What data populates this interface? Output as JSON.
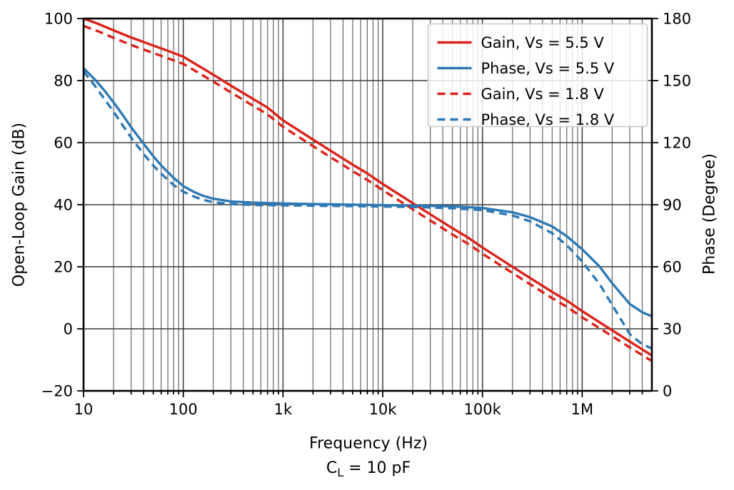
{
  "page": {
    "background": "#ffffff"
  },
  "subtitle": {
    "prefix": "C",
    "sub": "L",
    "rest": " = 10 pF"
  },
  "chart_data": {
    "type": "line",
    "title": "",
    "condition": "CL = 10 pF",
    "x_axis": {
      "label": "Frequency (Hz)",
      "scale": "log",
      "min": 10,
      "max": 5000000,
      "major_ticks": [
        {
          "value": 10,
          "label": "10"
        },
        {
          "value": 100,
          "label": "100"
        },
        {
          "value": 1000,
          "label": "1k"
        },
        {
          "value": 10000,
          "label": "10k"
        },
        {
          "value": 100000,
          "label": "100k"
        },
        {
          "value": 1000000,
          "label": "1M"
        }
      ]
    },
    "y_left": {
      "label": "Open-Loop Gain (dB)",
      "min": -20,
      "max": 100,
      "ticks": [
        {
          "value": 100,
          "label": "100"
        },
        {
          "value": 80,
          "label": "80"
        },
        {
          "value": 60,
          "label": "60"
        },
        {
          "value": 40,
          "label": "40"
        },
        {
          "value": 20,
          "label": "20"
        },
        {
          "value": 0,
          "label": "0"
        },
        {
          "value": -20,
          "label": "−20"
        }
      ]
    },
    "y_right": {
      "label": "Phase (Degree)",
      "min": 0,
      "max": 180,
      "ticks": [
        {
          "value": 180,
          "label": "180"
        },
        {
          "value": 150,
          "label": "150"
        },
        {
          "value": 120,
          "label": "120"
        },
        {
          "value": 90,
          "label": "90"
        },
        {
          "value": 60,
          "label": "60"
        },
        {
          "value": 30,
          "label": "30"
        },
        {
          "value": 0,
          "label": "0"
        }
      ]
    },
    "grid": {
      "show_major": true,
      "show_minor_x": true,
      "major_color": "#3a3a3a",
      "minor_color": "#585858"
    },
    "legend": {
      "position": "top-right",
      "entries": [
        "Gain, Vs = 5.5 V",
        "Phase, Vs = 5.5 V",
        "Gain, Vs = 1.8 V",
        "Phase, Vs = 1.8 V"
      ]
    },
    "colors": {
      "gain": "#dd2119",
      "phase": "#2e79b5"
    },
    "series": [
      {
        "name": "Gain, Vs = 5.5 V",
        "axis": "left",
        "color": "#dd2119",
        "dash": false,
        "points": [
          [
            10,
            100
          ],
          [
            14,
            98.3
          ],
          [
            20,
            96.2
          ],
          [
            30,
            93.9
          ],
          [
            50,
            91.3
          ],
          [
            70,
            89.6
          ],
          [
            100,
            87.7
          ],
          [
            200,
            81.9
          ],
          [
            300,
            78.4
          ],
          [
            500,
            74.1
          ],
          [
            700,
            71.3
          ],
          [
            1000,
            67.2
          ],
          [
            2000,
            61.0
          ],
          [
            3000,
            57.4
          ],
          [
            5000,
            52.9
          ],
          [
            7000,
            50.1
          ],
          [
            10000,
            46.7
          ],
          [
            20000,
            40.5
          ],
          [
            30000,
            36.9
          ],
          [
            50000,
            32.4
          ],
          [
            70000,
            29.6
          ],
          [
            100000,
            26.2
          ],
          [
            200000,
            20.0
          ],
          [
            300000,
            16.4
          ],
          [
            500000,
            11.9
          ],
          [
            700000,
            9.1
          ],
          [
            1000000,
            5.7
          ],
          [
            2000000,
            -0.5
          ],
          [
            3000000,
            -4.1
          ],
          [
            5000000,
            -8.6
          ]
        ]
      },
      {
        "name": "Phase, Vs = 5.5 V",
        "axis": "right",
        "color": "#2e79b5",
        "dash": false,
        "points": [
          [
            10,
            156
          ],
          [
            13,
            150.5
          ],
          [
            16,
            145.5
          ],
          [
            20,
            139.5
          ],
          [
            25,
            133
          ],
          [
            30,
            127.5
          ],
          [
            40,
            119.5
          ],
          [
            50,
            113.5
          ],
          [
            60,
            109
          ],
          [
            80,
            103
          ],
          [
            100,
            99
          ],
          [
            130,
            96
          ],
          [
            160,
            94.2
          ],
          [
            200,
            92.9
          ],
          [
            300,
            91.6
          ],
          [
            500,
            91.0
          ],
          [
            1000,
            90.6
          ],
          [
            2000,
            90.3
          ],
          [
            5000,
            90.0
          ],
          [
            10000,
            89.8
          ],
          [
            20000,
            89.6
          ],
          [
            50000,
            89.2
          ],
          [
            100000,
            88.4
          ],
          [
            200000,
            86.3
          ],
          [
            300000,
            84.0
          ],
          [
            500000,
            79.5
          ],
          [
            700000,
            74.8
          ],
          [
            1000000,
            68.5
          ],
          [
            1500000,
            60.0
          ],
          [
            2000000,
            52.0
          ],
          [
            3000000,
            42.0
          ],
          [
            4000000,
            38.0
          ],
          [
            5000000,
            36.0
          ]
        ]
      },
      {
        "name": "Gain, Vs = 1.8 V",
        "axis": "left",
        "color": "#dd2119",
        "dash": true,
        "points": [
          [
            10,
            97.6
          ],
          [
            14,
            95.9
          ],
          [
            20,
            93.8
          ],
          [
            30,
            91.5
          ],
          [
            50,
            88.9
          ],
          [
            70,
            87.2
          ],
          [
            100,
            85.4
          ],
          [
            200,
            79.7
          ],
          [
            300,
            76.2
          ],
          [
            500,
            71.9
          ],
          [
            700,
            69.1
          ],
          [
            1000,
            65.1
          ],
          [
            2000,
            58.9
          ],
          [
            3000,
            55.3
          ],
          [
            5000,
            50.8
          ],
          [
            7000,
            48.0
          ],
          [
            10000,
            44.7
          ],
          [
            20000,
            38.5
          ],
          [
            30000,
            34.9
          ],
          [
            50000,
            30.4
          ],
          [
            70000,
            27.6
          ],
          [
            100000,
            24.2
          ],
          [
            200000,
            18.0
          ],
          [
            300000,
            14.4
          ],
          [
            500000,
            9.9
          ],
          [
            700000,
            7.1
          ],
          [
            1000000,
            3.7
          ],
          [
            2000000,
            -2.4
          ],
          [
            3000000,
            -6.0
          ],
          [
            5000000,
            -10.4
          ]
        ]
      },
      {
        "name": "Phase, Vs = 1.8 V",
        "axis": "right",
        "color": "#2e79b5",
        "dash": true,
        "points": [
          [
            10,
            154.5
          ],
          [
            13,
            147.5
          ],
          [
            16,
            141.5
          ],
          [
            20,
            135
          ],
          [
            25,
            128
          ],
          [
            30,
            122.5
          ],
          [
            40,
            114.5
          ],
          [
            50,
            109
          ],
          [
            60,
            105
          ],
          [
            80,
            99.5
          ],
          [
            100,
            96.3
          ],
          [
            130,
            93.8
          ],
          [
            160,
            92.3
          ],
          [
            200,
            91.2
          ],
          [
            300,
            90.3
          ],
          [
            500,
            89.9
          ],
          [
            1000,
            89.7
          ],
          [
            2000,
            89.5
          ],
          [
            5000,
            89.3
          ],
          [
            10000,
            89.1
          ],
          [
            20000,
            88.9
          ],
          [
            50000,
            88.3
          ],
          [
            100000,
            87.4
          ],
          [
            200000,
            84.8
          ],
          [
            300000,
            82.0
          ],
          [
            500000,
            76.2
          ],
          [
            700000,
            70.5
          ],
          [
            1000000,
            62.5
          ],
          [
            1500000,
            51.5
          ],
          [
            2000000,
            41.5
          ],
          [
            3000000,
            27.5
          ],
          [
            4000000,
            22.5
          ],
          [
            5000000,
            20.5
          ]
        ]
      }
    ]
  }
}
